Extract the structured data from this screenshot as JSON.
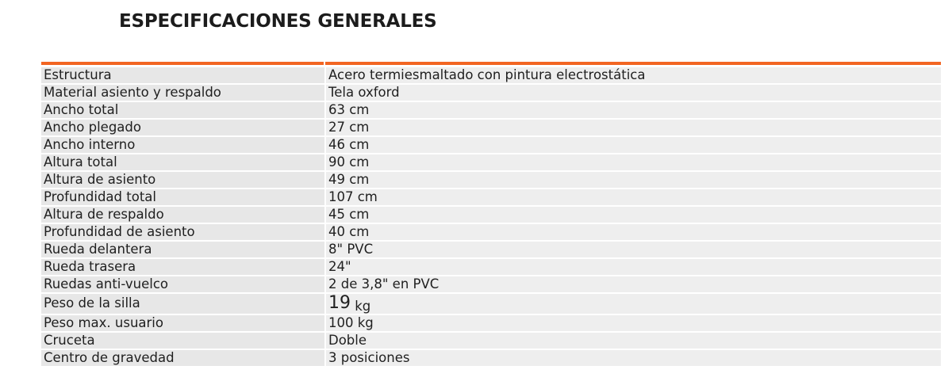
{
  "title": "ESPECIFICACIONES GENERALES",
  "accent_color": "#f26522",
  "specs": [
    {
      "label": "Estructura",
      "value": "Acero termiesmaltado con pintura electrostática"
    },
    {
      "label": "Material asiento y respaldo",
      "value": "Tela oxford"
    },
    {
      "label": "Ancho total",
      "value": "63 cm"
    },
    {
      "label": "Ancho plegado",
      "value": "27 cm"
    },
    {
      "label": "Ancho interno",
      "value": "46 cm"
    },
    {
      "label": "Altura total",
      "value": "90 cm"
    },
    {
      "label": "Altura de asiento",
      "value": "49 cm"
    },
    {
      "label": "Profundidad total",
      "value": "107 cm"
    },
    {
      "label": "Altura de respaldo",
      "value": "45 cm"
    },
    {
      "label": "Profundidad de asiento",
      "value": "40 cm"
    },
    {
      "label": "Rueda delantera",
      "value": "8\" PVC"
    },
    {
      "label": "Rueda trasera",
      "value": "24\""
    },
    {
      "label": "Ruedas anti-vuelco",
      "value": "2 de 3,8\" en PVC"
    },
    {
      "label": "Peso de la silla",
      "value_number": "19",
      "value_unit": "kg"
    },
    {
      "label": "Peso max. usuario",
      "value": "100 kg"
    },
    {
      "label": "Cruceta",
      "value": "Doble"
    },
    {
      "label": "Centro de gravedad",
      "value": "3 posiciones"
    }
  ]
}
